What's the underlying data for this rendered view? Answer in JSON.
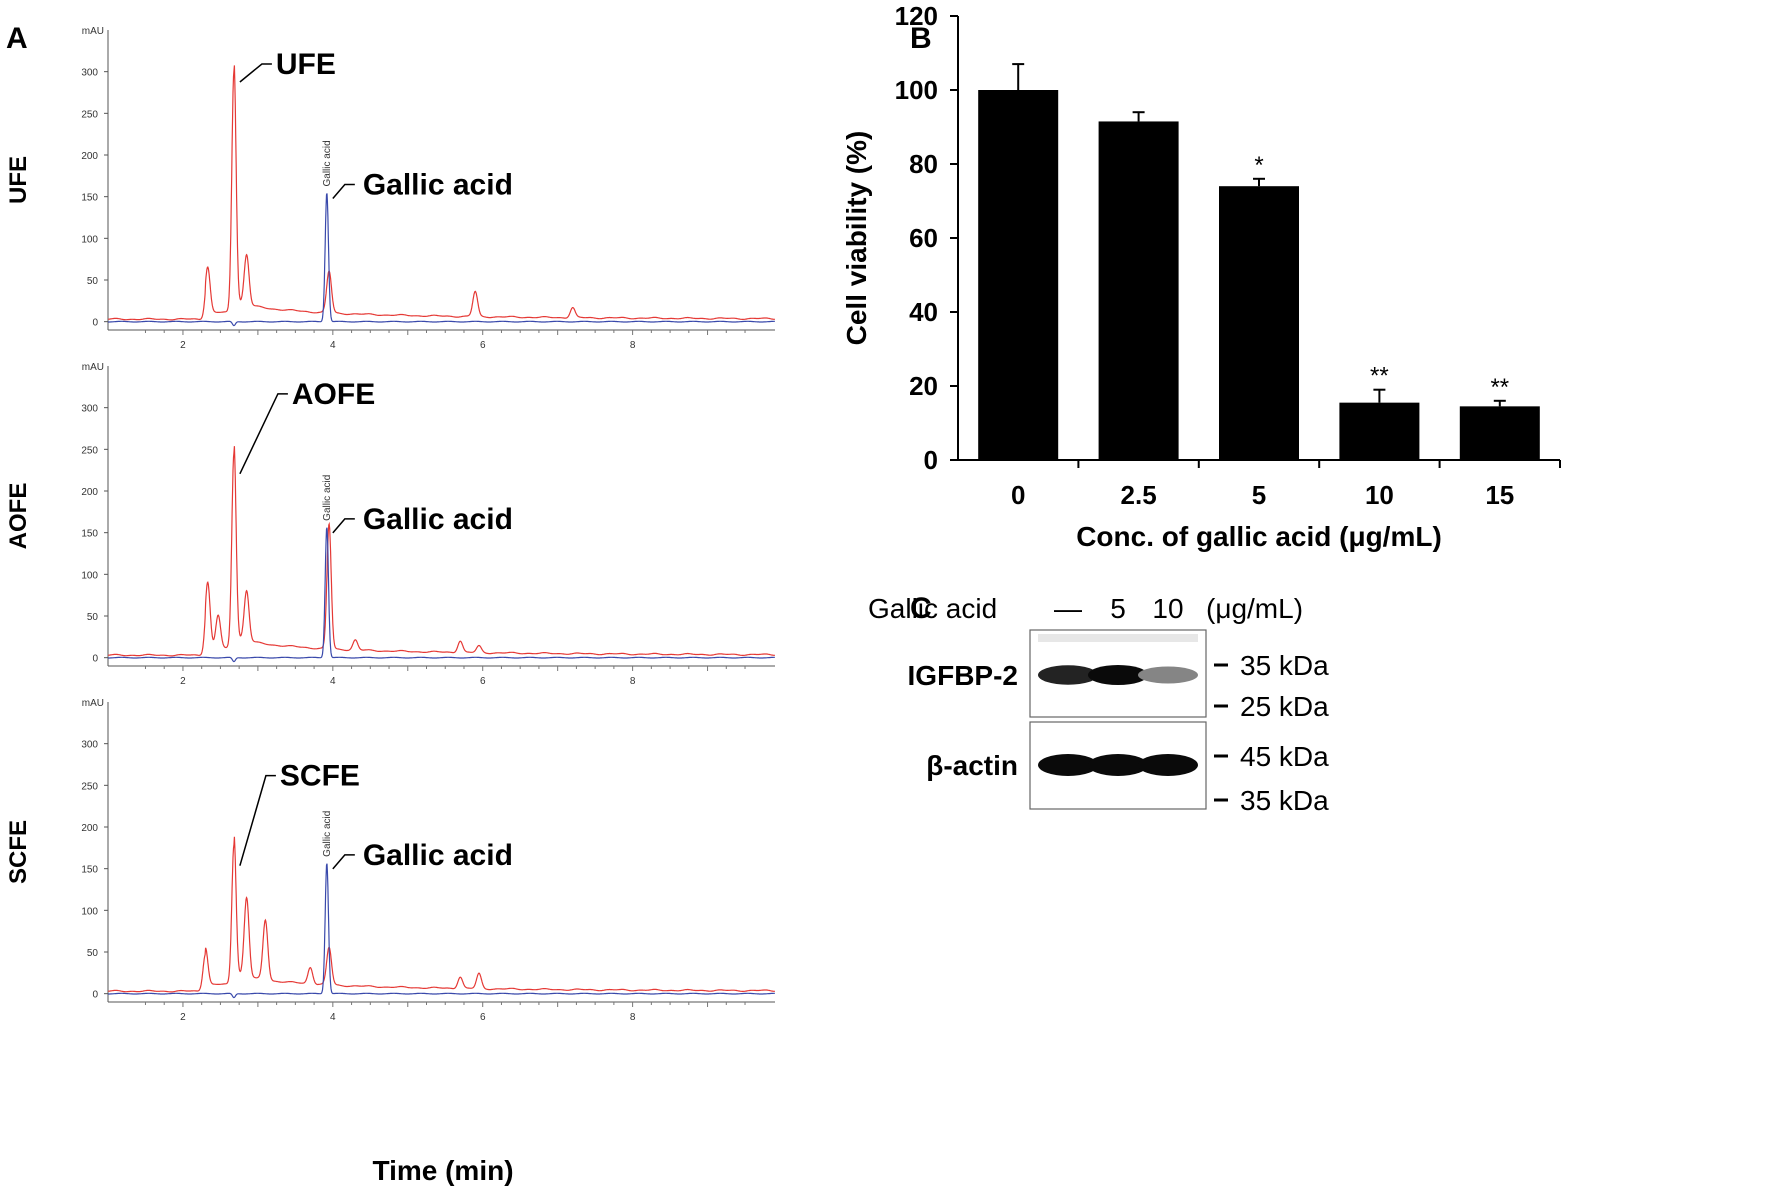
{
  "panels": {
    "a": "A",
    "b": "B",
    "c": "C"
  },
  "chromatograms": {
    "y_unit": "mAU",
    "y_ticks": [
      0,
      50,
      100,
      150,
      200,
      250,
      300
    ],
    "x_ticks": [
      2,
      4,
      6,
      8
    ],
    "x_range": [
      1,
      9.9
    ],
    "y_range": [
      -10,
      350
    ],
    "x_title": "Time (min)",
    "peak_label": "Gallic acid",
    "rows": [
      {
        "side_label": "UFE",
        "extract_label": "UFE",
        "extract_peak": 290,
        "gallic_peak": 155,
        "red_peaks": [
          [
            2.33,
            55
          ],
          [
            2.68,
            290
          ],
          [
            2.85,
            60
          ],
          [
            3.95,
            50
          ],
          [
            5.9,
            30
          ],
          [
            7.2,
            12
          ]
        ]
      },
      {
        "side_label": "AOFE",
        "extract_label": "AOFE",
        "extract_peak": 235,
        "gallic_peak": 157,
        "red_peaks": [
          [
            2.33,
            80
          ],
          [
            2.47,
            40
          ],
          [
            2.68,
            235
          ],
          [
            2.85,
            60
          ],
          [
            3.95,
            150
          ],
          [
            4.3,
            12
          ],
          [
            5.7,
            14
          ],
          [
            5.95,
            8
          ]
        ]
      },
      {
        "side_label": "SCFE",
        "extract_label": "SCFE",
        "extract_peak": 168,
        "gallic_peak": 157,
        "red_peaks": [
          [
            2.3,
            45
          ],
          [
            2.68,
            168
          ],
          [
            2.85,
            95
          ],
          [
            3.1,
            72
          ],
          [
            3.7,
            20
          ],
          [
            3.95,
            45
          ],
          [
            5.7,
            14
          ],
          [
            5.95,
            18
          ]
        ]
      }
    ]
  },
  "chart_data": {
    "type": "bar",
    "title": "",
    "categories": [
      "0",
      "2.5",
      "5",
      "10",
      "15"
    ],
    "values": [
      100,
      91.5,
      74,
      15.5,
      14.5
    ],
    "errors": [
      7,
      2.5,
      2,
      3.5,
      1.5
    ],
    "significance": [
      "",
      "",
      "*",
      "**",
      "**"
    ],
    "xlabel": "Conc. of gallic acid (μg/mL)",
    "ylabel": "Cell viability (%)",
    "ylim": [
      0,
      120
    ],
    "yticks": [
      0,
      20,
      40,
      60,
      80,
      100,
      120
    ]
  },
  "western_blot": {
    "treatment_label": "Gallic acid",
    "lanes": [
      "—",
      "5",
      "10"
    ],
    "unit": "(μg/mL)",
    "bands": [
      {
        "protein": "IGFBP-2",
        "markers": [
          "35 kDa",
          "25 kDa"
        ],
        "intensity": [
          0.9,
          1.0,
          0.5
        ]
      },
      {
        "protein": "β-actin",
        "markers": [
          "45 kDa",
          "35 kDa"
        ],
        "intensity": [
          1.0,
          1.0,
          1.0
        ]
      }
    ]
  },
  "colors": {
    "extract": "#e53935",
    "gallic": "#3949ab",
    "bar": "#000000"
  }
}
